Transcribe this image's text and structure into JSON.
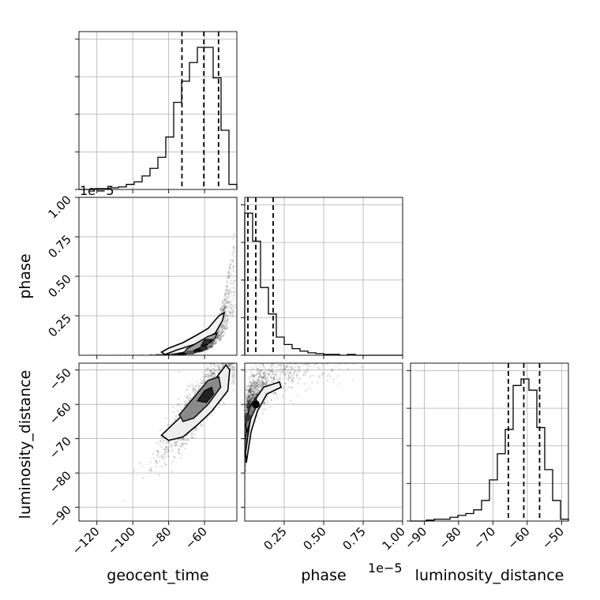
{
  "chart_data": {
    "type": "corner",
    "parameters": [
      "geocent_time",
      "phase",
      "luminosity_distance"
    ],
    "axis_labels": {
      "geocent_time": "geocent_time",
      "phase": "phase",
      "luminosity_distance": "luminosity_distance"
    },
    "offset_text": {
      "phase_y": "1e−5",
      "phase_x": "1e−5"
    },
    "ticks": {
      "geocent_time": [
        -120,
        -100,
        -80,
        -60
      ],
      "phase": [
        0.25,
        0.5,
        0.75,
        1.0
      ],
      "luminosity_distance_y": [
        -50,
        -60,
        -70,
        -80,
        -90
      ],
      "luminosity_distance_x": [
        -90,
        -80,
        -70,
        -60,
        -50
      ]
    },
    "tick_labels": {
      "geocent_time": [
        "−120",
        "−100",
        "−80",
        "−60"
      ],
      "phase": [
        "0.25",
        "0.50",
        "0.75",
        "1.00"
      ],
      "luminosity_distance_y": [
        "−50",
        "−60",
        "−70",
        "−80",
        "−90"
      ],
      "luminosity_distance_x": [
        "−90",
        "−80",
        "−70",
        "−60",
        "−50"
      ]
    },
    "ranges": {
      "geocent_time": [
        -130,
        -42
      ],
      "phase": [
        0,
        1.0
      ],
      "luminosity_distance": [
        -94,
        -48
      ]
    },
    "histograms": {
      "geocent_time": {
        "bin_edges": [
          -130,
          -125.6,
          -121.2,
          -116.8,
          -112.4,
          -108,
          -103.6,
          -99.2,
          -94.8,
          -90.4,
          -86,
          -81.6,
          -77.2,
          -72.8,
          -68.4,
          -64,
          -59.6,
          -55.2,
          -50.8,
          -46.4,
          -42
        ],
        "counts": [
          0,
          0,
          1,
          1,
          2,
          3,
          6,
          9,
          16,
          25,
          38,
          62,
          103,
          128,
          150,
          168,
          168,
          132,
          70,
          6
        ],
        "quantiles": [
          -72.6,
          -60.4,
          -52.2
        ]
      },
      "phase": {
        "bin_edges": [
          0,
          0.05,
          0.1,
          0.15,
          0.2,
          0.25,
          0.3,
          0.35,
          0.4,
          0.45,
          0.5,
          0.55,
          0.6,
          0.65,
          0.7,
          0.75,
          0.8,
          0.85,
          0.9,
          0.95,
          1.0
        ],
        "counts": [
          172,
          138,
          82,
          50,
          22,
          13,
          8,
          5,
          3,
          2,
          1,
          1,
          0,
          1,
          0,
          0,
          0,
          0,
          0,
          0
        ],
        "quantiles": [
          0.02,
          0.07,
          0.18
        ]
      },
      "luminosity_distance": {
        "bin_edges": [
          -94,
          -91.7,
          -89.4,
          -87.1,
          -84.8,
          -82.5,
          -80.2,
          -77.9,
          -75.6,
          -73.3,
          -71,
          -68.7,
          -66.4,
          -64.1,
          -61.8,
          -59.5,
          -57.2,
          -54.9,
          -52.6,
          -50.3,
          -48
        ],
        "counts": [
          0,
          0,
          1,
          2,
          2,
          4,
          6,
          8,
          12,
          22,
          44,
          72,
          98,
          145,
          152,
          140,
          100,
          55,
          22,
          2
        ],
        "quantiles": [
          -65.5,
          -61.0,
          -56.4
        ]
      }
    },
    "contour_levels": 3,
    "grid": true
  }
}
